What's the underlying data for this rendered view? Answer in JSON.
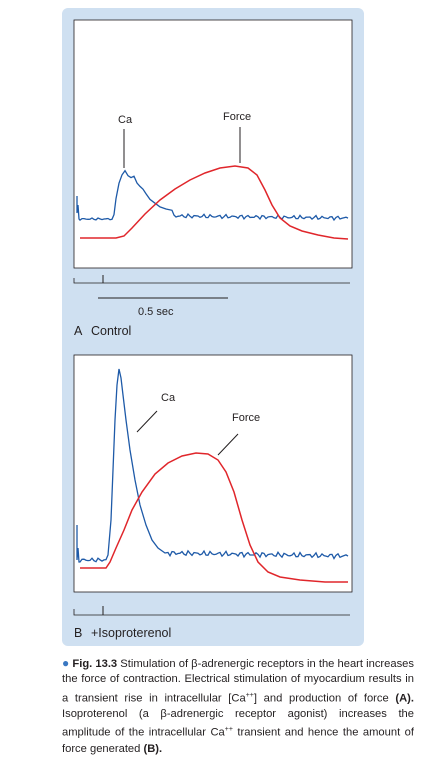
{
  "figure": {
    "panel_a": {
      "letter": "A",
      "title": "Control",
      "ca_label": "Ca",
      "force_label": "Force",
      "scale_label": "0.5 sec"
    },
    "panel_b": {
      "letter": "B",
      "title": "+Isoproterenol",
      "ca_label": "Ca",
      "force_label": "Force"
    },
    "colors": {
      "ca_trace": "#1e5aa8",
      "force_trace": "#e0262b",
      "panel_background": "#cfe0f1"
    }
  },
  "caption": {
    "fig_label": "Fig. 13.3",
    "text_1": " Stimulation of β-adrenergic receptors in the heart increases the force of contraction. Electrical stimulation of myocardium results in a transient rise in intracellular [Ca",
    "superscript_1": "++",
    "text_2": "] and production of force ",
    "ref_a": "(A).",
    "text_3": " Isoproterenol (a β-adrenergic receptor agonist) increases the amplitude of the intracellular Ca",
    "superscript_2": "++",
    "text_4": " transient and hence the amount of force generated ",
    "ref_b": "(B)."
  }
}
